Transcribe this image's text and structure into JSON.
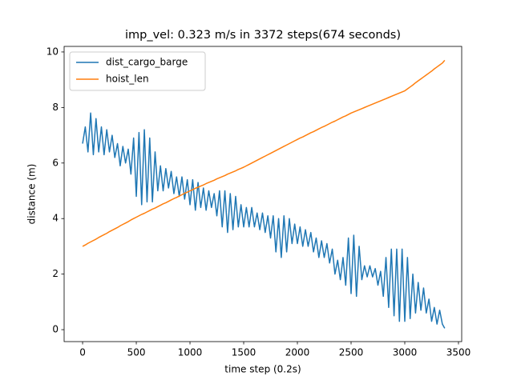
{
  "chart_data": {
    "type": "line",
    "title": "imp_vel: 0.323 m/s in 3372 steps(674 seconds)",
    "xlabel": "time step (0.2s)",
    "ylabel": "distance (m)",
    "xlim": [
      -172,
      3530
    ],
    "ylim": [
      -0.43,
      10.2
    ],
    "xticks": [
      0,
      500,
      1000,
      1500,
      2000,
      2500,
      3000,
      3500
    ],
    "yticks": [
      0,
      2,
      4,
      6,
      8,
      10
    ],
    "grid": false,
    "legend": "upper left",
    "x": [
      0,
      25,
      50,
      75,
      100,
      125,
      150,
      175,
      200,
      225,
      250,
      275,
      300,
      325,
      350,
      375,
      400,
      425,
      450,
      475,
      500,
      525,
      550,
      575,
      600,
      625,
      650,
      675,
      700,
      725,
      750,
      775,
      800,
      825,
      850,
      875,
      900,
      925,
      950,
      975,
      1000,
      1025,
      1050,
      1075,
      1100,
      1125,
      1150,
      1175,
      1200,
      1225,
      1250,
      1275,
      1300,
      1325,
      1350,
      1375,
      1400,
      1425,
      1450,
      1475,
      1500,
      1525,
      1550,
      1575,
      1600,
      1625,
      1650,
      1675,
      1700,
      1725,
      1750,
      1775,
      1800,
      1825,
      1850,
      1875,
      1900,
      1925,
      1950,
      1975,
      2000,
      2025,
      2050,
      2075,
      2100,
      2125,
      2150,
      2175,
      2200,
      2225,
      2250,
      2275,
      2300,
      2325,
      2350,
      2375,
      2400,
      2425,
      2450,
      2475,
      2500,
      2525,
      2550,
      2575,
      2600,
      2625,
      2650,
      2675,
      2700,
      2725,
      2750,
      2775,
      2800,
      2825,
      2850,
      2875,
      2900,
      2925,
      2950,
      2975,
      3000,
      3025,
      3050,
      3075,
      3100,
      3125,
      3150,
      3175,
      3200,
      3225,
      3250,
      3275,
      3300,
      3325,
      3350,
      3372
    ],
    "series": [
      {
        "name": "dist_cargo_barge",
        "color": "#1f77b4",
        "values": [
          6.7,
          7.3,
          6.4,
          7.8,
          6.3,
          7.6,
          6.4,
          7.3,
          6.3,
          7.2,
          6.4,
          7.0,
          6.2,
          6.7,
          5.9,
          6.6,
          6.0,
          6.5,
          5.6,
          6.9,
          4.8,
          7.1,
          4.5,
          7.2,
          4.6,
          6.9,
          4.6,
          6.4,
          5.0,
          5.9,
          5.0,
          5.8,
          5.1,
          5.7,
          4.9,
          5.5,
          4.8,
          5.5,
          4.7,
          5.4,
          4.5,
          5.4,
          4.3,
          5.3,
          4.4,
          5.1,
          4.3,
          5.0,
          4.4,
          4.9,
          4.1,
          5.0,
          3.7,
          5.0,
          3.5,
          4.9,
          3.6,
          4.8,
          3.7,
          4.5,
          3.7,
          4.4,
          3.7,
          4.4,
          3.7,
          4.2,
          3.6,
          4.2,
          3.5,
          4.1,
          3.3,
          4.1,
          2.8,
          4.0,
          2.6,
          4.1,
          2.8,
          4.0,
          3.1,
          3.8,
          3.1,
          3.7,
          3.0,
          3.6,
          3.0,
          3.5,
          2.8,
          3.3,
          2.6,
          3.2,
          2.6,
          3.1,
          2.4,
          2.9,
          2.0,
          2.5,
          1.8,
          2.6,
          1.6,
          3.3,
          1.3,
          3.4,
          1.2,
          3.0,
          1.8,
          2.3,
          1.9,
          2.3,
          1.9,
          2.2,
          1.6,
          2.1,
          1.2,
          2.6,
          0.8,
          2.9,
          0.5,
          2.9,
          0.3,
          2.9,
          0.3,
          2.6,
          0.4,
          2.0,
          0.6,
          1.7,
          0.7,
          1.5,
          0.6,
          1.1,
          0.3,
          0.8,
          0.2,
          0.7,
          0.2,
          0.05
        ]
      },
      {
        "name": "hoist_len",
        "color": "#ff7f0e",
        "values": [
          3.0,
          3.05,
          3.11,
          3.16,
          3.21,
          3.26,
          3.32,
          3.37,
          3.42,
          3.47,
          3.53,
          3.58,
          3.63,
          3.68,
          3.74,
          3.79,
          3.84,
          3.89,
          3.95,
          4.0,
          4.05,
          4.1,
          4.15,
          4.19,
          4.24,
          4.29,
          4.34,
          4.38,
          4.43,
          4.48,
          4.53,
          4.57,
          4.62,
          4.67,
          4.72,
          4.76,
          4.81,
          4.86,
          4.91,
          4.95,
          5.0,
          5.04,
          5.09,
          5.13,
          5.17,
          5.21,
          5.26,
          5.3,
          5.34,
          5.38,
          5.43,
          5.47,
          5.51,
          5.55,
          5.6,
          5.64,
          5.68,
          5.72,
          5.77,
          5.81,
          5.85,
          5.9,
          5.95,
          6.0,
          6.05,
          6.1,
          6.15,
          6.2,
          6.25,
          6.3,
          6.35,
          6.4,
          6.45,
          6.5,
          6.55,
          6.6,
          6.65,
          6.7,
          6.75,
          6.8,
          6.85,
          6.9,
          6.94,
          6.99,
          7.04,
          7.09,
          7.13,
          7.18,
          7.23,
          7.28,
          7.32,
          7.37,
          7.42,
          7.47,
          7.51,
          7.56,
          7.61,
          7.66,
          7.7,
          7.75,
          7.8,
          7.84,
          7.88,
          7.92,
          7.96,
          8.0,
          8.04,
          8.08,
          8.12,
          8.16,
          8.2,
          8.24,
          8.28,
          8.32,
          8.36,
          8.4,
          8.44,
          8.48,
          8.52,
          8.56,
          8.6,
          8.67,
          8.74,
          8.81,
          8.89,
          8.96,
          9.03,
          9.1,
          9.17,
          9.24,
          9.31,
          9.39,
          9.46,
          9.53,
          9.6,
          9.7
        ]
      }
    ]
  }
}
